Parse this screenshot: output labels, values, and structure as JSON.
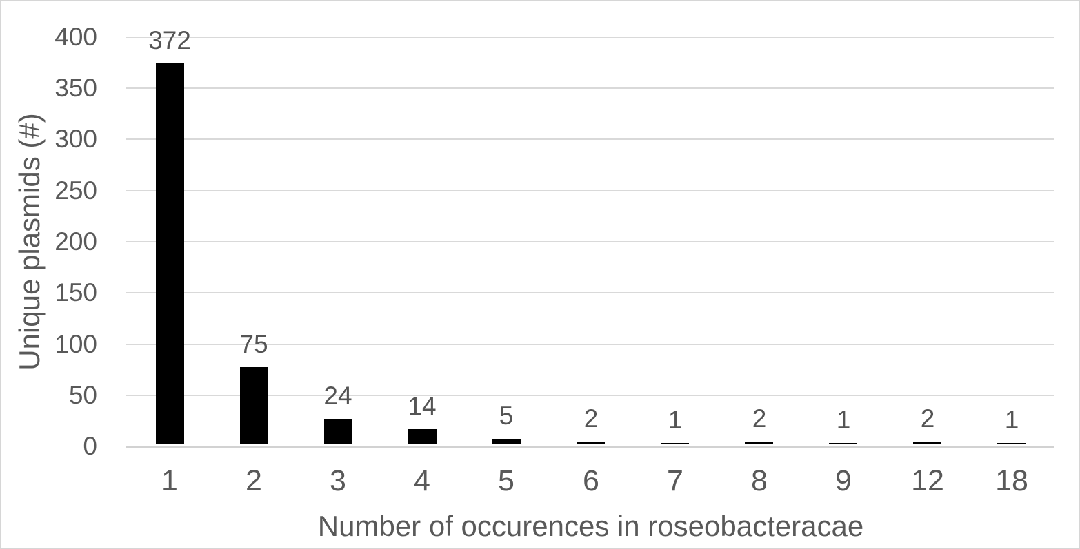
{
  "chart_data": {
    "type": "bar",
    "title": "",
    "categories": [
      "1",
      "2",
      "3",
      "4",
      "5",
      "6",
      "7",
      "8",
      "9",
      "12",
      "18"
    ],
    "values": [
      372,
      75,
      24,
      14,
      5,
      2,
      1,
      2,
      1,
      2,
      1
    ],
    "data_labels": [
      "372",
      "75",
      "24",
      "14",
      "5",
      "2",
      "1",
      "2",
      "1",
      "2",
      "1"
    ],
    "xlabel": "Number of occurences in roseobacteracae",
    "ylabel": "Unique plasmids (#)",
    "ylim": [
      0,
      400
    ],
    "yticks": [
      0,
      50,
      100,
      150,
      200,
      250,
      300,
      350,
      400
    ],
    "grid": "horizontal-only",
    "legend": "none",
    "bar_color": "#000000",
    "gridline_color": "#d9d9d9",
    "zero_line_color": "#d2d2d2",
    "text_color": "#595959",
    "background_color": "#ffffff",
    "border_color": "#d6d6d6"
  }
}
